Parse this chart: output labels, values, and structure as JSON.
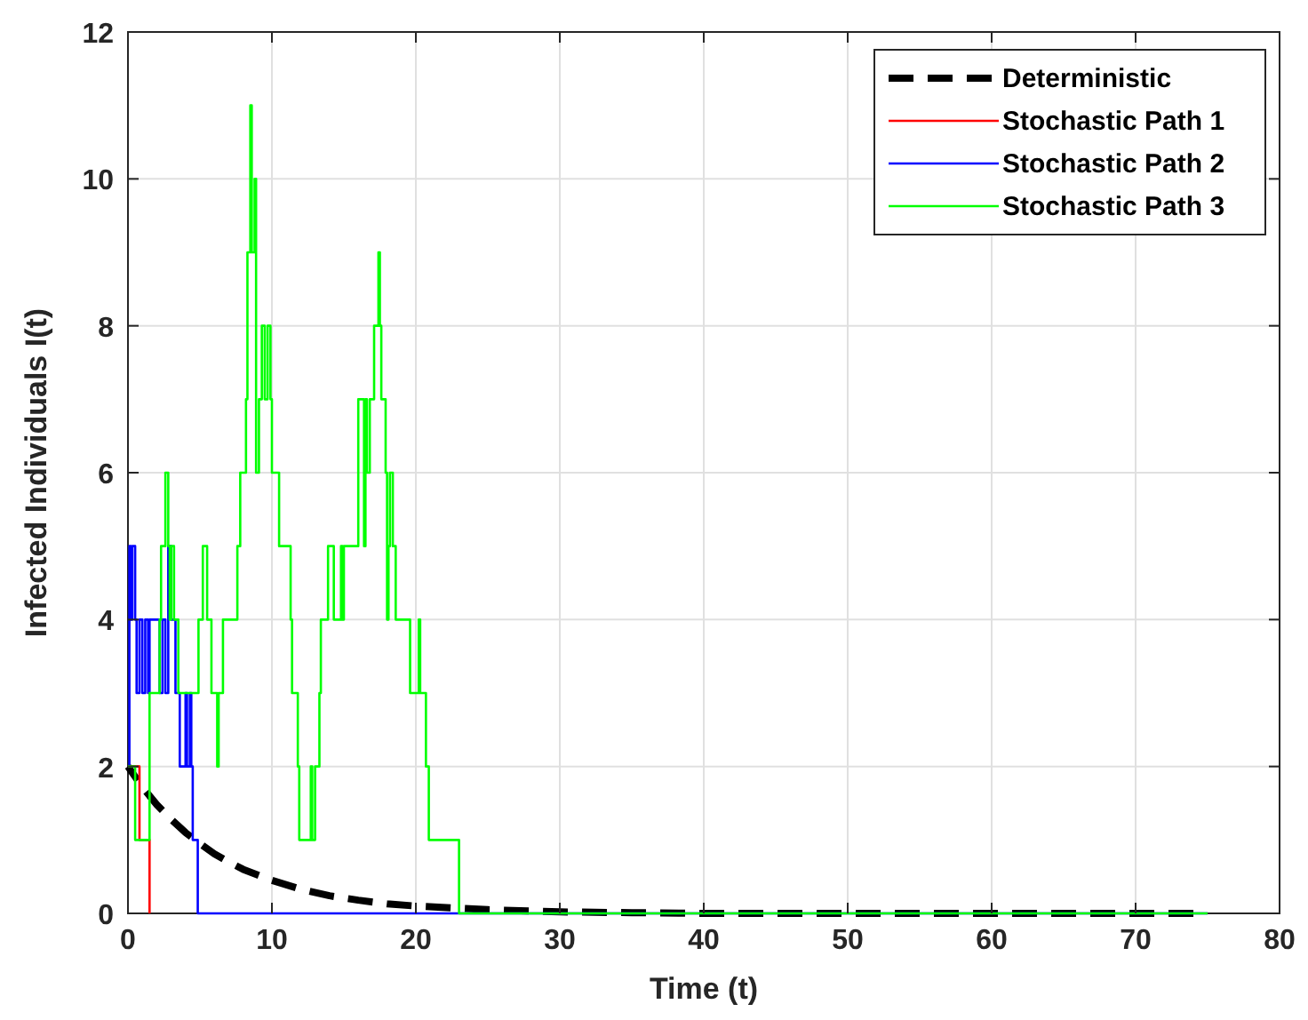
{
  "chart_data": {
    "type": "line",
    "xlabel": "Time (t)",
    "ylabel": "Infected Individuals I(t)",
    "xlim": [
      0,
      80
    ],
    "xticks": [
      0,
      10,
      20,
      30,
      40,
      50,
      60,
      70,
      80
    ],
    "ylim": [
      0,
      12
    ],
    "yticks": [
      0,
      2,
      4,
      6,
      8,
      10,
      12
    ],
    "grid": true,
    "legend": "top right",
    "series": [
      {
        "name": "Deterministic",
        "type": "line",
        "color": "#000000",
        "line_style": "dashed",
        "x": [
          0,
          1,
          2,
          3,
          4,
          5,
          6,
          7,
          8,
          10,
          12,
          14,
          16,
          18,
          20,
          25,
          30,
          35,
          40,
          50,
          60,
          75
        ],
        "values": [
          2,
          1.72,
          1.48,
          1.28,
          1.1,
          0.95,
          0.81,
          0.7,
          0.6,
          0.45,
          0.33,
          0.24,
          0.18,
          0.13,
          0.1,
          0.05,
          0.02,
          0.01,
          0,
          0,
          0,
          0
        ]
      },
      {
        "name": "Stochastic Path 1",
        "type": "step",
        "color": "#ff0000",
        "line_style": "solid",
        "x": [
          0,
          0.8,
          1.5
        ],
        "values": [
          2,
          1,
          0
        ]
      },
      {
        "name": "Stochastic Path 2",
        "type": "step",
        "color": "#0000ff",
        "line_style": "solid",
        "x": [
          0,
          0.1,
          0.2,
          0.3,
          0.5,
          0.6,
          0.8,
          1.0,
          1.2,
          1.4,
          1.5,
          2.2,
          2.4,
          2.6,
          2.8,
          3.0,
          3.3,
          3.6,
          3.8,
          4.0,
          4.1,
          4.3,
          4.4,
          4.5,
          4.85,
          75
        ],
        "values": [
          2,
          5,
          4,
          5,
          4,
          3,
          4,
          3,
          4,
          3,
          4,
          3,
          4,
          3,
          5,
          4,
          3,
          2,
          2,
          3,
          2,
          3,
          2,
          1,
          0,
          0
        ]
      },
      {
        "name": "Stochastic Path 3",
        "type": "step",
        "color": "#00ff00",
        "line_style": "solid",
        "x": [
          0,
          0.5,
          1.5,
          2.2,
          2.3,
          2.6,
          2.8,
          2.9,
          3.0,
          3.2,
          3.5,
          4.9,
          5.2,
          5.5,
          5.8,
          6.2,
          6.3,
          6.6,
          7.6,
          7.8,
          8.2,
          8.3,
          8.5,
          8.6,
          8.8,
          8.9,
          9.1,
          9.3,
          9.5,
          9.7,
          9.9,
          10.0,
          10.5,
          11.3,
          11.4,
          11.8,
          11.9,
          12.7,
          12.8,
          13.0,
          13.3,
          13.4,
          13.9,
          14.3,
          14.8,
          14.9,
          15.0,
          16.0,
          16.4,
          16.5,
          16.6,
          16.8,
          17.1,
          17.4,
          17.5,
          17.6,
          17.9,
          18.0,
          18.1,
          18.2,
          18.4,
          18.6,
          19.6,
          20.2,
          20.3,
          20.7,
          20.9,
          23.0,
          75
        ],
        "values": [
          2,
          1,
          3,
          4,
          5,
          6,
          5,
          4,
          5,
          4,
          3,
          4,
          5,
          4,
          3,
          2,
          3,
          4,
          5,
          6,
          7,
          9,
          11,
          9,
          10,
          6,
          7,
          8,
          7,
          8,
          7,
          6,
          5,
          4,
          3,
          2,
          1,
          2,
          1,
          2,
          3,
          4,
          5,
          4,
          5,
          4,
          5,
          7,
          5,
          7,
          6,
          7,
          8,
          9,
          8,
          7,
          6,
          4,
          5,
          6,
          5,
          4,
          3,
          4,
          3,
          2,
          1,
          0,
          0
        ]
      }
    ]
  }
}
